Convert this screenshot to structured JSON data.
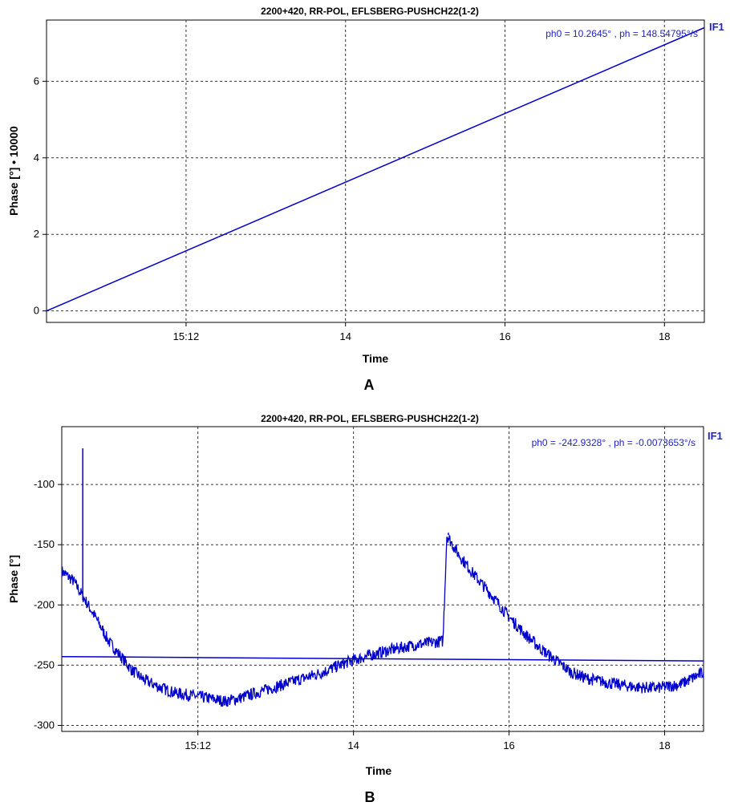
{
  "chart_data": [
    {
      "type": "line",
      "panel_label": "A",
      "title": "2200+420, RR-POL,  EFLSBERG-PUSHCH22(1-2)",
      "ylabel": "Phase [°] • 10000",
      "xlabel": "Time",
      "fit_text": "ph0 = 10.2645° , ph = 148.54795°/s",
      "if_label": "IF1",
      "x_tick_labels": [
        "15:12",
        "14",
        "16",
        "18"
      ],
      "x_tick_minutes": [
        12,
        14,
        16,
        18
      ],
      "xlim_minutes": [
        10.25,
        18.5
      ],
      "y_ticks": [
        0,
        2,
        4,
        6
      ],
      "y_tick_labels": [
        "0",
        "2",
        "4",
        "6"
      ],
      "ylim": [
        -0.3,
        7.6
      ],
      "grid": true,
      "series": [
        {
          "color": "#0000cc",
          "points": [
            [
              10.25,
              0.0
            ],
            [
              18.5,
              7.4
            ]
          ]
        }
      ]
    },
    {
      "type": "line",
      "panel_label": "B",
      "title": "2200+420, RR-POL,  EFLSBERG-PUSHCH22(1-2)",
      "ylabel": "Phase [°]",
      "xlabel": "Time",
      "fit_text": "ph0 = -242.9328° , ph = -0.0073653°/s",
      "if_label": "IF1",
      "x_tick_labels": [
        "15:12",
        "14",
        "16",
        "18"
      ],
      "x_tick_minutes": [
        12,
        14,
        16,
        18
      ],
      "xlim_minutes": [
        10.25,
        18.5
      ],
      "y_ticks": [
        -300,
        -250,
        -200,
        -150,
        -100
      ],
      "y_tick_labels": [
        "-300",
        "-250",
        "-200",
        "-150",
        "-100"
      ],
      "ylim": [
        -305,
        -52
      ],
      "grid": true,
      "series": [
        {
          "color": "#0000cc",
          "points": [
            [
              10.25,
              -172
            ],
            [
              10.4,
              -180
            ],
            [
              10.55,
              -196
            ],
            [
              10.7,
              -212
            ],
            [
              10.85,
              -230
            ],
            [
              11.0,
              -242
            ],
            [
              11.15,
              -254
            ],
            [
              11.3,
              -262
            ],
            [
              11.5,
              -268
            ],
            [
              11.7,
              -273
            ],
            [
              11.9,
              -275
            ],
            [
              12.1,
              -277
            ],
            [
              12.35,
              -280
            ],
            [
              12.5,
              -278
            ],
            [
              12.75,
              -273
            ],
            [
              13.0,
              -268
            ],
            [
              13.3,
              -262
            ],
            [
              13.6,
              -256
            ],
            [
              13.9,
              -248
            ],
            [
              14.2,
              -242
            ],
            [
              14.5,
              -237
            ],
            [
              14.8,
              -233
            ],
            [
              15.15,
              -230
            ],
            [
              15.2,
              -142
            ],
            [
              15.35,
              -158
            ],
            [
              15.55,
              -175
            ],
            [
              15.75,
              -190
            ],
            [
              16.0,
              -210
            ],
            [
              16.2,
              -224
            ],
            [
              16.4,
              -236
            ],
            [
              16.6,
              -246
            ],
            [
              16.8,
              -256
            ],
            [
              17.0,
              -261
            ],
            [
              17.3,
              -265
            ],
            [
              17.6,
              -268
            ],
            [
              17.9,
              -269
            ],
            [
              18.2,
              -266
            ],
            [
              18.5,
              -256
            ]
          ],
          "spikes": [
            [
              10.52,
              -70
            ],
            [
              15.22,
              -140
            ]
          ]
        },
        {
          "color": "#0000cc",
          "points": [
            [
              10.25,
              -242.9
            ],
            [
              12.0,
              -243.7
            ],
            [
              14.0,
              -244.6
            ],
            [
              16.0,
              -245.4
            ],
            [
              18.5,
              -246.5
            ]
          ]
        }
      ]
    }
  ]
}
